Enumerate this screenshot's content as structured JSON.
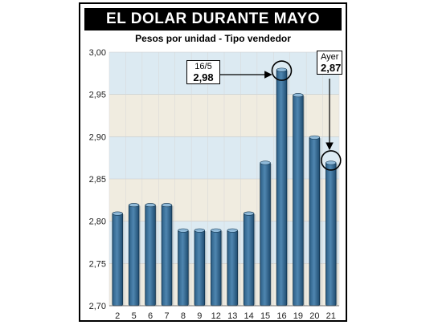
{
  "chart_data": {
    "type": "bar",
    "title": "EL DOLAR DURANTE MAYO",
    "subtitle": "Pesos por unidad - Tipo vendedor",
    "categories": [
      "2",
      "5",
      "6",
      "7",
      "8",
      "9",
      "12",
      "13",
      "14",
      "15",
      "16",
      "19",
      "20",
      "21"
    ],
    "values": [
      2.81,
      2.82,
      2.82,
      2.82,
      2.79,
      2.79,
      2.79,
      2.79,
      2.81,
      2.87,
      2.98,
      2.95,
      2.9,
      2.87
    ],
    "ylim": [
      2.7,
      3.0
    ],
    "yticks": [
      "2,70",
      "2,75",
      "2,80",
      "2,85",
      "2,90",
      "2,95",
      "3,00"
    ],
    "annotations": [
      {
        "label": "16/5",
        "value": "2,98",
        "category": "16"
      },
      {
        "label": "Ayer",
        "value": "2,87",
        "category": "21"
      }
    ],
    "colors": {
      "bar": "#4f86b0",
      "bar_dark": "#1f4c70",
      "band_a": "#f0ece0",
      "band_b": "#dceaf2"
    }
  }
}
